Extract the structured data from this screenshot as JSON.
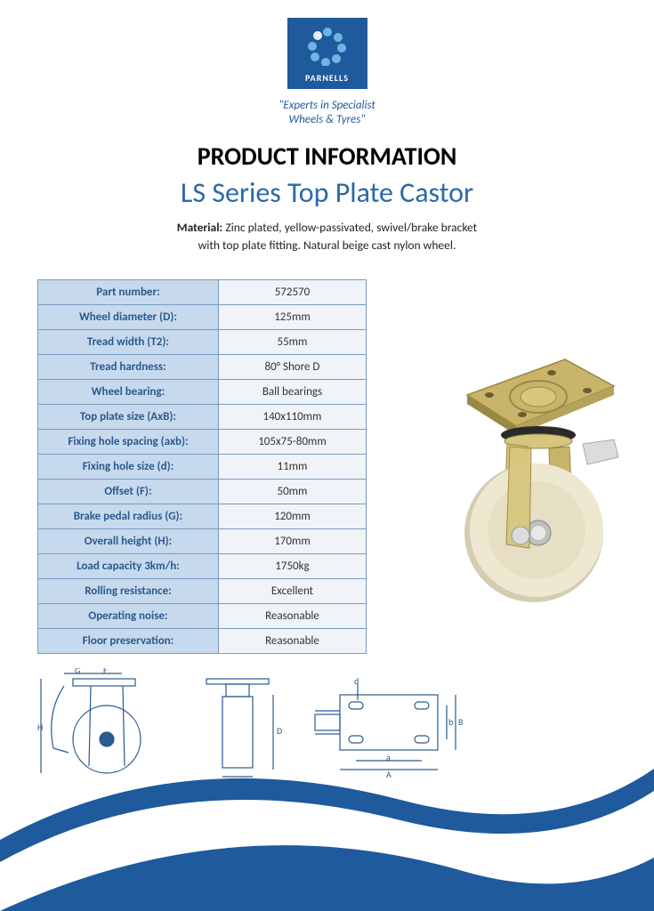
{
  "logo": {
    "brand": "PARNELLS",
    "tagline_line1": "\"Experts in Specialist",
    "tagline_line2": "Wheels & Tyres\"",
    "bg_color": "#1e5a9c",
    "dot_colors": [
      "#6eb4e6",
      "#6eb4e6",
      "#6eb4e6",
      "#6eb4e6",
      "#6eb4e6",
      "#6eb4e6",
      "#6eb4e6",
      "#e8ecef"
    ]
  },
  "title": "PRODUCT INFORMATION",
  "subtitle": "LS Series Top Plate Castor",
  "material": {
    "label": "Material:",
    "line1": "Zinc plated, yellow-passivated, swivel/brake bracket",
    "line2": "with top plate fitting. Natural beige cast nylon wheel."
  },
  "specs": [
    {
      "key": "Part number:",
      "val": "572570"
    },
    {
      "key": "Wheel diameter (D):",
      "val": "125mm"
    },
    {
      "key": "Tread width (T2):",
      "val": "55mm"
    },
    {
      "key": "Tread hardness:",
      "val": "80° Shore D"
    },
    {
      "key": "Wheel bearing:",
      "val": "Ball bearings"
    },
    {
      "key": "Top plate size (AxB):",
      "val": "140x110mm"
    },
    {
      "key": "Fixing hole spacing (axb):",
      "val": "105x75-80mm"
    },
    {
      "key": "Fixing hole size (d):",
      "val": "11mm"
    },
    {
      "key": "Offset (F):",
      "val": "50mm"
    },
    {
      "key": "Brake pedal radius (G):",
      "val": "120mm"
    },
    {
      "key": "Overall height (H):",
      "val": "170mm"
    },
    {
      "key": "Load capacity 3km/h:",
      "val": "1750kg"
    },
    {
      "key": "Rolling resistance:",
      "val": "Excellent"
    },
    {
      "key": "Operating noise:",
      "val": "Reasonable"
    },
    {
      "key": "Floor preservation:",
      "val": "Reasonable"
    }
  ],
  "table_colors": {
    "border": "#7a9cc0",
    "key_bg": "#c7d9ec",
    "key_text": "#2a5a90",
    "val_bg": "#f0f3f8",
    "val_text": "#333333"
  },
  "diagram_labels": {
    "G": "G",
    "F": "F",
    "H": "H",
    "D": "D",
    "T2": "T2",
    "d": "d",
    "a": "a",
    "A": "A",
    "b": "b",
    "B": "B"
  },
  "diagram_stroke": "#2a5a90",
  "product_colors": {
    "plate": "#c9b56a",
    "plate_edge": "#9a8845",
    "bracket": "#d6c67e",
    "wheel": "#eee8d0",
    "wheel_shadow": "#d4cdb0",
    "hub": "#c0c0c0"
  },
  "swoosh_colors": {
    "outer": "#1e5a9c",
    "inner": "#ffffff"
  }
}
